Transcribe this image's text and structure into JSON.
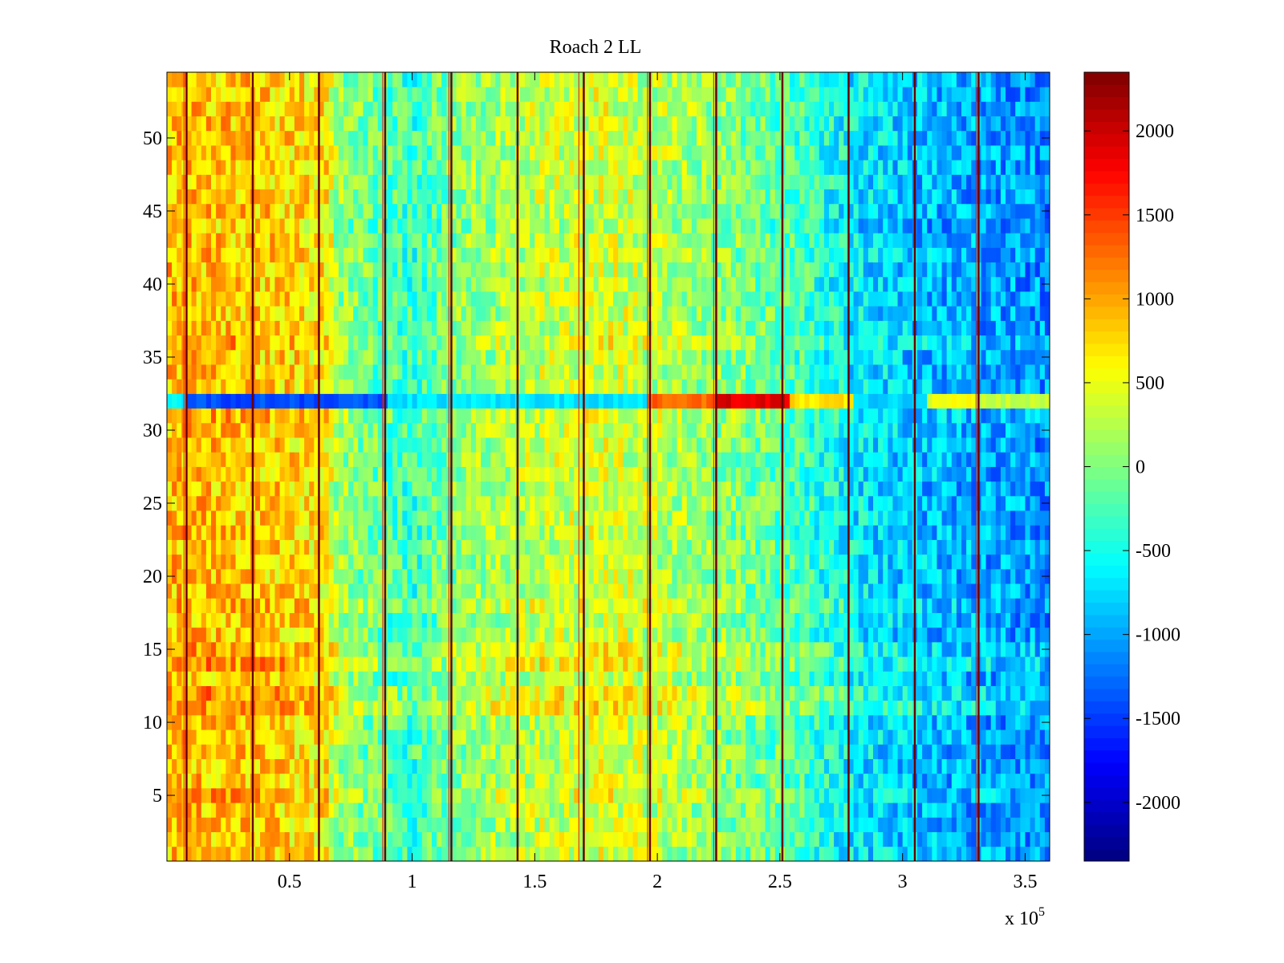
{
  "chart_data": {
    "type": "heatmap",
    "title": "Roach 2 LL",
    "xlabel": "",
    "ylabel": "",
    "x_multiplier_label": {
      "base": "x 10",
      "exponent": "5"
    },
    "xlim": [
      0,
      3.6
    ],
    "ylim": [
      0.5,
      54.5
    ],
    "x_ticks": [
      0.5,
      1,
      1.5,
      2,
      2.5,
      3,
      3.5
    ],
    "x_tick_labels": [
      "0.5",
      "1",
      "1.5",
      "2",
      "2.5",
      "3",
      "3.5"
    ],
    "y_ticks": [
      5,
      10,
      15,
      20,
      25,
      30,
      35,
      40,
      45,
      50
    ],
    "y_tick_labels": [
      "5",
      "10",
      "15",
      "20",
      "25",
      "30",
      "35",
      "40",
      "45",
      "50"
    ],
    "colorbar": {
      "colormap": "jet",
      "range": [
        -2350,
        2350
      ],
      "ticks": [
        -2000,
        -1500,
        -1000,
        -500,
        0,
        500,
        1000,
        1500,
        2000
      ],
      "tick_labels": [
        "-2000",
        "-1500",
        "-1000",
        "-500",
        "0",
        "500",
        "1000",
        "1500",
        "2000"
      ]
    },
    "rows": 54,
    "x_bins": 180,
    "column_means": [
      {
        "x": 0.0,
        "value": 900
      },
      {
        "x": 0.35,
        "value": 850
      },
      {
        "x": 0.65,
        "value": 650
      },
      {
        "x": 0.7,
        "value": 100
      },
      {
        "x": 1.0,
        "value": -350
      },
      {
        "x": 1.2,
        "value": 50
      },
      {
        "x": 1.5,
        "value": 300
      },
      {
        "x": 1.8,
        "value": 400
      },
      {
        "x": 2.0,
        "value": 250
      },
      {
        "x": 2.5,
        "value": -150
      },
      {
        "x": 2.8,
        "value": -650
      },
      {
        "x": 3.1,
        "value": -900
      },
      {
        "x": 3.6,
        "value": -1100
      }
    ],
    "row_offsets": [
      {
        "row": 5,
        "value": 150
      },
      {
        "row": 11,
        "value": 300
      },
      {
        "row": 12,
        "value": 250
      },
      {
        "row": 14,
        "value": 250
      },
      {
        "row": 15,
        "value": 200
      },
      {
        "row": 18,
        "value": 150
      },
      {
        "row": 31,
        "value": 100
      },
      {
        "row": 36,
        "value": 150
      },
      {
        "row": 44,
        "value": -100
      }
    ],
    "special_row": {
      "row": 32,
      "segments": [
        {
          "from": 0.0,
          "to": 0.09,
          "value": -600
        },
        {
          "from": 0.09,
          "to": 0.9,
          "value": -1400
        },
        {
          "from": 0.9,
          "to": 1.97,
          "value": -700
        },
        {
          "from": 1.97,
          "to": 2.25,
          "value": 1300
        },
        {
          "from": 2.25,
          "to": 2.55,
          "value": 1900
        },
        {
          "from": 2.55,
          "to": 2.8,
          "value": 700
        },
        {
          "from": 2.8,
          "to": 3.1,
          "value": -800
        },
        {
          "from": 3.1,
          "to": 3.31,
          "value": 500
        },
        {
          "from": 3.31,
          "to": 3.6,
          "value": 300
        }
      ]
    },
    "dark_vertical_lines_x": [
      0.08,
      0.35,
      0.62,
      0.89,
      1.16,
      1.43,
      1.7,
      1.97,
      2.24,
      2.51,
      2.78,
      3.05,
      3.31
    ],
    "red_vertical_lines_x": [
      0.07,
      0.88,
      1.15,
      1.68,
      1.96,
      2.23,
      3.3
    ]
  }
}
